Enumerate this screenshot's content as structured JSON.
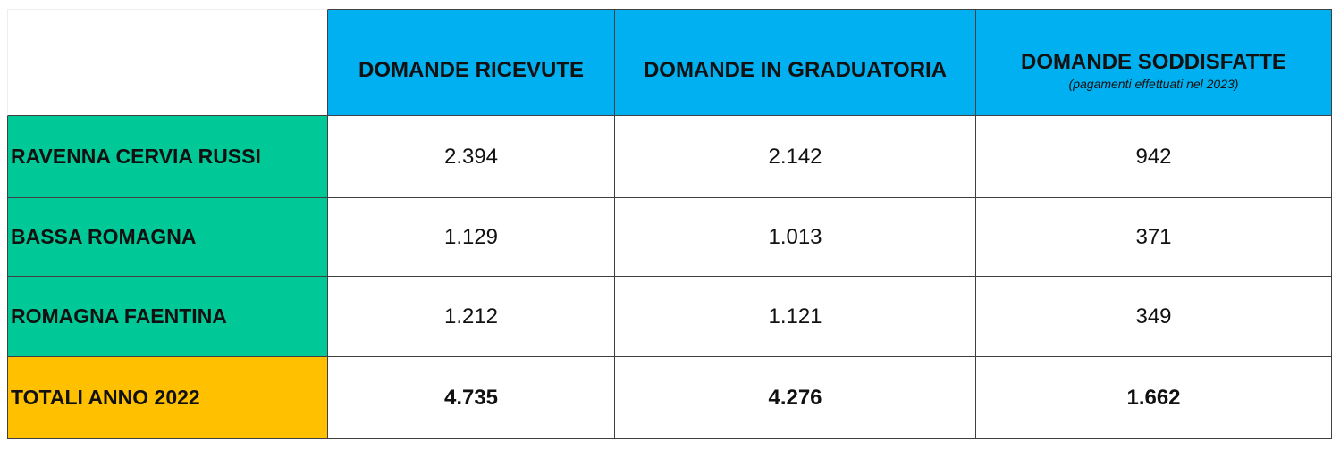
{
  "table": {
    "header": [
      "DOMANDE RICEVUTE",
      "DOMANDE IN GRADUATORIA",
      "DOMANDE SODDISFATTE"
    ],
    "header_note": "(pagamenti effettuati nel 2023)",
    "rows": [
      [
        "RAVENNA CERVIA RUSSI",
        "2.394",
        "2.142",
        "942"
      ],
      [
        "BASSA ROMAGNA",
        "1.129",
        "1.013",
        "371"
      ],
      [
        "ROMAGNA FAENTINA",
        "1.212",
        "1.121",
        "349"
      ]
    ],
    "total": [
      "TOTALI ANNO 2022",
      "4.735",
      "4.276",
      "1.662"
    ]
  }
}
